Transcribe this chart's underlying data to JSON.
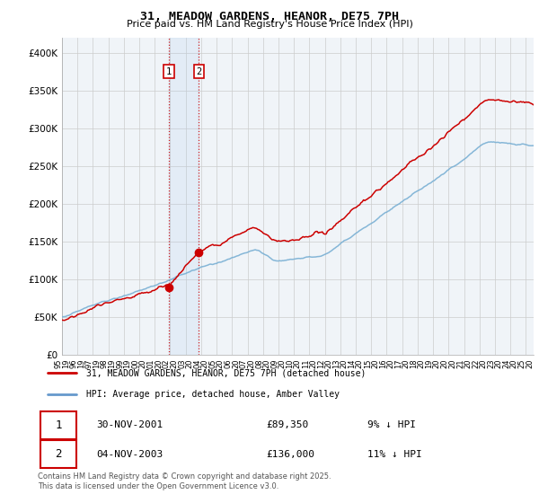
{
  "title": "31, MEADOW GARDENS, HEANOR, DE75 7PH",
  "subtitle": "Price paid vs. HM Land Registry's House Price Index (HPI)",
  "ylim": [
    0,
    420000
  ],
  "yticks": [
    0,
    50000,
    100000,
    150000,
    200000,
    250000,
    300000,
    350000,
    400000
  ],
  "ytick_labels": [
    "£0",
    "£50K",
    "£100K",
    "£150K",
    "£200K",
    "£250K",
    "£300K",
    "£350K",
    "£400K"
  ],
  "xlim": [
    1995,
    2025.5
  ],
  "legend_entries": [
    "31, MEADOW GARDENS, HEANOR, DE75 7PH (detached house)",
    "HPI: Average price, detached house, Amber Valley"
  ],
  "legend_colors": [
    "#cc0000",
    "#6699cc"
  ],
  "transactions": [
    {
      "label": "1",
      "date": "30-NOV-2001",
      "price": 89350,
      "hpi_diff": "9% ↓ HPI",
      "x_year": 2001.92
    },
    {
      "label": "2",
      "date": "04-NOV-2003",
      "price": 136000,
      "hpi_diff": "11% ↓ HPI",
      "x_year": 2003.85
    }
  ],
  "transaction_box_color": "#ddeeff",
  "transaction_box_border": "#cc0000",
  "vline_color": "#cc0000",
  "grid_color": "#cccccc",
  "background_color": "#ffffff",
  "plot_bg_color": "#f0f4f8",
  "hpi_line_color": "#7ab0d4",
  "price_line_color": "#cc0000",
  "footer": "Contains HM Land Registry data © Crown copyright and database right 2025.\nThis data is licensed under the Open Government Licence v3.0."
}
